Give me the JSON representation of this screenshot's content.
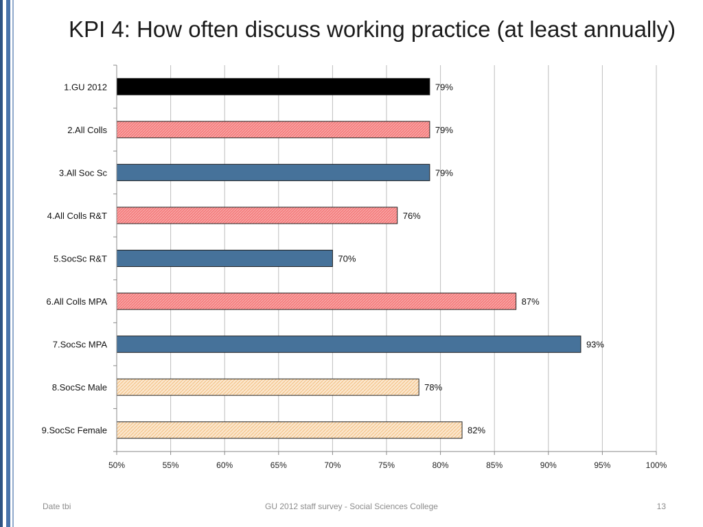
{
  "slide": {
    "title": "KPI 4: How often discuss working practice (at least annually)",
    "footer_left": "Date tbi",
    "footer_center": "GU 2012 staff survey -  Social Sciences College",
    "page_number": "13"
  },
  "colors": {
    "sidebar_dark": "#2f5383",
    "sidebar_mid": "#4a73aa",
    "black_bar": "#000000",
    "pink_bar": "#f47f7f",
    "blue_bar": "#46729a",
    "tan_bar": "#fbe6cc",
    "grid": "#bdbdbd"
  },
  "chart_data": {
    "type": "bar",
    "orientation": "horizontal",
    "categories": [
      "1.GU 2012",
      "2.All Colls",
      "3.All Soc Sc",
      "4.All Colls R&T",
      "5.SocSc R&T",
      "6.All Colls MPA",
      "7.SocSc MPA",
      "8.SocSc Male",
      "9.SocSc Female"
    ],
    "values": [
      0.79,
      0.79,
      0.79,
      0.76,
      0.7,
      0.87,
      0.93,
      0.78,
      0.82
    ],
    "data_labels": [
      "79%",
      "79%",
      "79%",
      "76%",
      "70%",
      "87%",
      "93%",
      "78%",
      "82%"
    ],
    "bar_styles": [
      "black",
      "pink",
      "blue",
      "pink",
      "blue",
      "pink",
      "blue",
      "tan",
      "tan"
    ],
    "xlim": [
      0.5,
      1.0
    ],
    "xticks": [
      0.5,
      0.55,
      0.6,
      0.65,
      0.7,
      0.75,
      0.8,
      0.85,
      0.9,
      0.95,
      1.0
    ],
    "xtick_labels": [
      "50%",
      "55%",
      "60%",
      "65%",
      "70%",
      "75%",
      "80%",
      "85%",
      "90%",
      "95%",
      "100%"
    ],
    "grid": true,
    "legend": false,
    "title": "KPI 4: How often discuss working practice (at least annually)",
    "xlabel": "",
    "ylabel": ""
  }
}
